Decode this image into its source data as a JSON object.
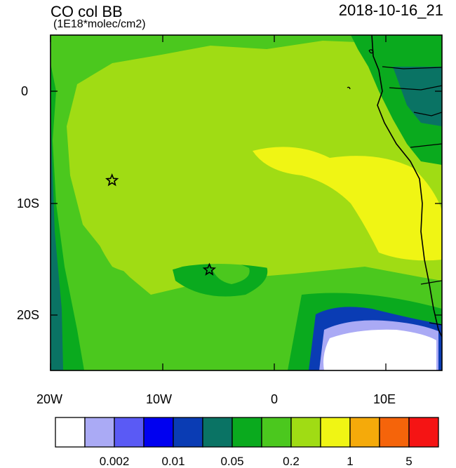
{
  "header": {
    "variable": "CO col BB",
    "units": "(1E18*molec/cm2)",
    "timestamp": "2018-10-16_21"
  },
  "axes": {
    "x_ticks": [
      "20W",
      "10W",
      "0",
      "10E"
    ],
    "y_ticks": [
      "0",
      "10S",
      "20S"
    ]
  },
  "colorbar": {
    "colors": [
      "#ffffff",
      "#aaaaf5",
      "#5a5af5",
      "#0000f0",
      "#0a3cb4",
      "#0a7364",
      "#0aaa1e",
      "#4bc81e",
      "#a0dc14",
      "#f0f514",
      "#f5aa0a",
      "#f5640a",
      "#f51414"
    ],
    "labels": [
      "0.002",
      "0.01",
      "0.05",
      "0.2",
      "1",
      "5"
    ]
  },
  "map": {
    "extent": {
      "lon_min": -20,
      "lon_max": 15,
      "lat_min": -25,
      "lat_max": 5
    },
    "markers": [
      {
        "name": "star",
        "lon": -14.5,
        "lat": -8
      },
      {
        "name": "star",
        "lon": -5.8,
        "lat": -16
      }
    ]
  }
}
